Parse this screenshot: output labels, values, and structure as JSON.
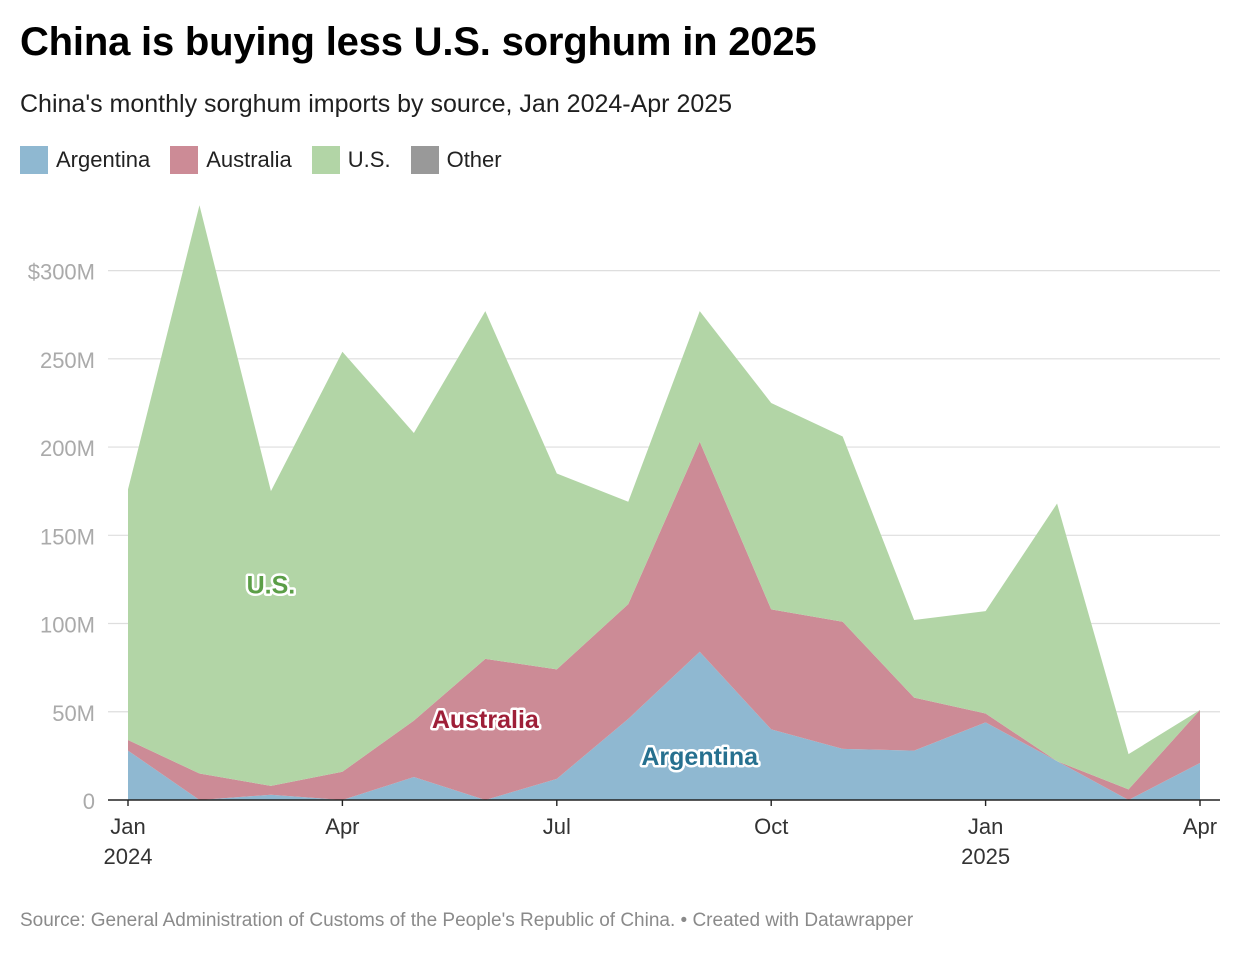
{
  "title": "China is buying less U.S. sorghum in 2025",
  "subtitle": "China's monthly sorghum imports by source, Jan 2024-Apr 2025",
  "source": "Source: General Administration of Customs of the People's Republic of China. • Created with Datawrapper",
  "legend": [
    {
      "label": "Argentina",
      "color": "#8fb8d1"
    },
    {
      "label": "Australia",
      "color": "#cc8b96"
    },
    {
      "label": "U.S.",
      "color": "#b2d5a6"
    },
    {
      "label": "Other",
      "color": "#999999"
    }
  ],
  "chart_data": {
    "type": "area",
    "stacked": true,
    "title": "China is buying less U.S. sorghum in 2025",
    "subtitle": "China's monthly sorghum imports by source, Jan 2024-Apr 2025",
    "x": [
      "2024-01",
      "2024-02",
      "2024-03",
      "2024-04",
      "2024-05",
      "2024-06",
      "2024-07",
      "2024-08",
      "2024-09",
      "2024-10",
      "2024-11",
      "2024-12",
      "2025-01",
      "2025-02",
      "2025-03",
      "2025-04"
    ],
    "x_tick_labels": [
      {
        "x": "2024-01",
        "line1": "Jan",
        "line2": "2024"
      },
      {
        "x": "2024-04",
        "line1": "Apr",
        "line2": ""
      },
      {
        "x": "2024-07",
        "line1": "Jul",
        "line2": ""
      },
      {
        "x": "2024-10",
        "line1": "Oct",
        "line2": ""
      },
      {
        "x": "2025-01",
        "line1": "Jan",
        "line2": "2025"
      },
      {
        "x": "2025-04",
        "line1": "Apr",
        "line2": ""
      }
    ],
    "y_ticks": [
      {
        "value": 0,
        "label": "0"
      },
      {
        "value": 50,
        "label": "50M"
      },
      {
        "value": 100,
        "label": "100M"
      },
      {
        "value": 150,
        "label": "150M"
      },
      {
        "value": 200,
        "label": "200M"
      },
      {
        "value": 250,
        "label": "250M"
      },
      {
        "value": 300,
        "label": "$300M"
      }
    ],
    "ylim": [
      0,
      340
    ],
    "grid": true,
    "legend_position": "top-left",
    "series": [
      {
        "name": "Argentina",
        "color": "#8fb8d1",
        "values": [
          28,
          0,
          3,
          0,
          13,
          0,
          12,
          46,
          84,
          40,
          29,
          28,
          44,
          22,
          0,
          21
        ]
      },
      {
        "name": "Australia",
        "color": "#cc8b96",
        "values": [
          6,
          15,
          5,
          16,
          32,
          80,
          62,
          65,
          119,
          68,
          72,
          30,
          5,
          0,
          6,
          30
        ]
      },
      {
        "name": "U.S.",
        "color": "#b2d5a6",
        "values": [
          142,
          322,
          167,
          238,
          163,
          197,
          111,
          58,
          74,
          117,
          105,
          44,
          58,
          146,
          20,
          0
        ]
      },
      {
        "name": "Other",
        "color": "#999999",
        "values": [
          0,
          0,
          0,
          0,
          0,
          0,
          0,
          0,
          0,
          0,
          0,
          0,
          0,
          0,
          0,
          0
        ]
      }
    ],
    "annotations": [
      {
        "text": "U.S.",
        "color": "#5b9e47",
        "x": "2024-03",
        "y": 122
      },
      {
        "text": "Australia",
        "color": "#9e1f38",
        "x": "2024-06",
        "y": 46
      },
      {
        "text": "Argentina",
        "color": "#26708f",
        "x": "2024-09",
        "y": 25
      }
    ]
  }
}
